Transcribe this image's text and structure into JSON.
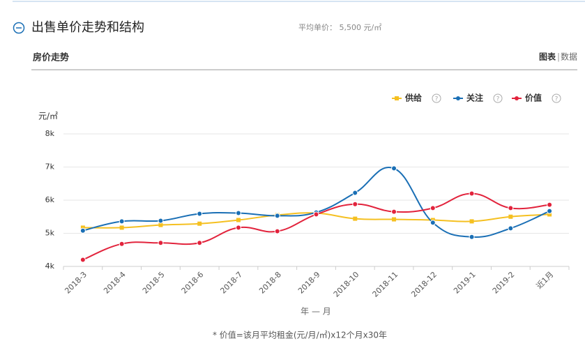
{
  "header": {
    "title": "出售单价走势和结构",
    "avg_price": "平均单价： 5,500 元/㎡",
    "subtitle": "房价走势",
    "tab_chart": "图表",
    "tab_data": "数据"
  },
  "chart_data": {
    "type": "line",
    "y_label": "元/㎡",
    "x_label": "年 — 月",
    "note": "* 价值=该月平均租金(元/月/㎡)x12个月x30年",
    "categories": [
      "2018-3",
      "2018-4",
      "2018-5",
      "2018-6",
      "2018-7",
      "2018-8",
      "2018-9",
      "2018-10",
      "2018-11",
      "2018-12",
      "2019-1",
      "2019-2",
      "近1月"
    ],
    "series": [
      {
        "name": "供给",
        "color": "#f5c021",
        "marker": "square",
        "values": [
          5170,
          5170,
          5250,
          5290,
          5400,
          5550,
          5610,
          5440,
          5420,
          5400,
          5360,
          5500,
          5570
        ]
      },
      {
        "name": "关注",
        "color": "#1a6fb5",
        "marker": "circle",
        "values": [
          5080,
          5360,
          5380,
          5590,
          5610,
          5530,
          5630,
          6220,
          6960,
          5320,
          4890,
          5150,
          5670
        ]
      },
      {
        "name": "价值",
        "color": "#e2233c",
        "marker": "circle",
        "values": [
          4200,
          4680,
          4710,
          4710,
          5170,
          5060,
          5570,
          5880,
          5650,
          5760,
          6200,
          5760,
          5860
        ]
      }
    ],
    "ylim": [
      4000,
      8000
    ],
    "yticks": [
      {
        "value": 4000,
        "label": "4k"
      },
      {
        "value": 5000,
        "label": "5k"
      },
      {
        "value": 6000,
        "label": "6k"
      },
      {
        "value": 7000,
        "label": "7k"
      },
      {
        "value": 8000,
        "label": "8k"
      }
    ],
    "grid": true
  }
}
